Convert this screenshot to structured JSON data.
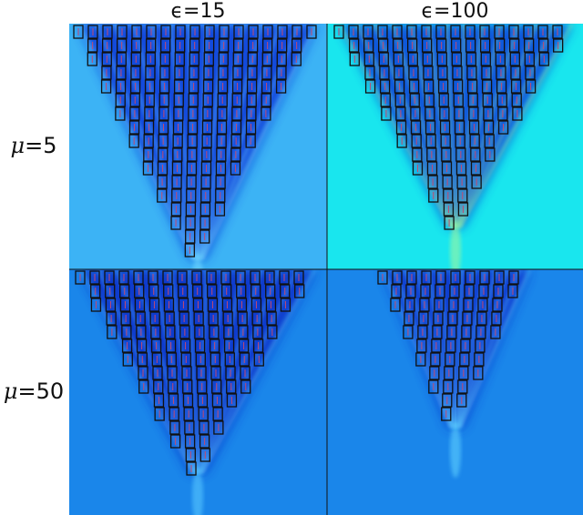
{
  "columns": [
    {
      "symbol": "ϵ",
      "eq": "=15"
    },
    {
      "symbol": "ϵ",
      "eq": "=100"
    }
  ],
  "rows": [
    {
      "symbol": "μ",
      "eq": "=5"
    },
    {
      "symbol": "μ",
      "eq": "=50"
    }
  ],
  "panels": [
    {
      "id": "mu5-eps15",
      "background": "#3cb3f5",
      "field": "#0a39d8",
      "glow": "#6fd8ff"
    },
    {
      "id": "mu5-eps100",
      "background": "#19e6ee",
      "field": "#0a3fd8",
      "glow": "#9ff7a0"
    },
    {
      "id": "mu50-eps15",
      "background": "#1a86ea",
      "field": "#082fc8",
      "glow": "#58c8ff"
    },
    {
      "id": "mu50-eps100",
      "background": "#1a86ea",
      "field": "#0a33cc",
      "glow": "#5fd0ff"
    }
  ]
}
